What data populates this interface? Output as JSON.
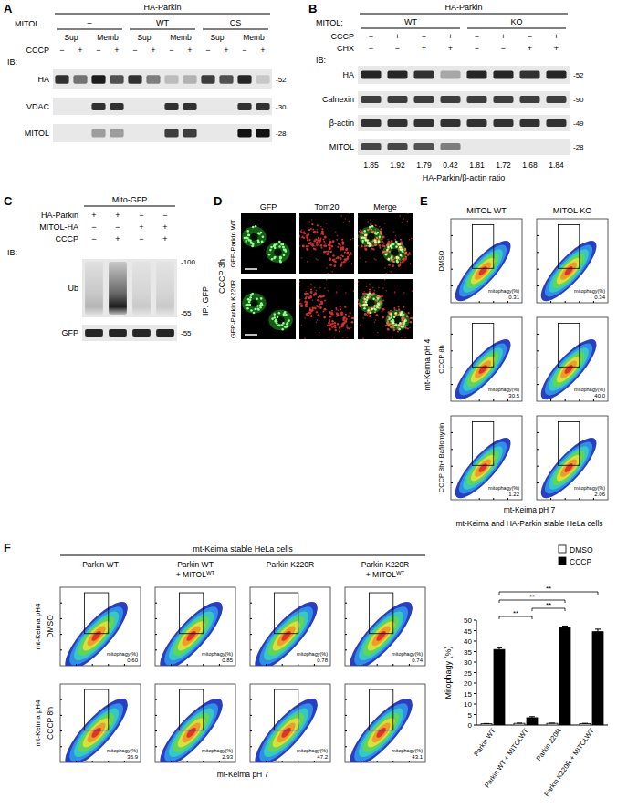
{
  "panels": {
    "A": {
      "letter": "A",
      "title": "HA-Parkin",
      "condition_label": "MITOL",
      "groups": [
        "–",
        "WT",
        "CS"
      ],
      "fractions": [
        "Sup",
        "Memb"
      ],
      "treatment_label": "CCCP",
      "treatment": [
        "−",
        "+"
      ],
      "ib": "IB:",
      "blots": [
        {
          "label": "HA",
          "mw": "-52",
          "signal": [
            0.85,
            0.55,
            0.95,
            0.7,
            0.85,
            0.5,
            0.2,
            0.25,
            0.8,
            0.7,
            0.9,
            0.15
          ]
        },
        {
          "label": "VDAC",
          "mw": "-30",
          "signal": [
            0,
            0,
            0.85,
            0.85,
            0,
            0,
            0.85,
            0.85,
            0,
            0,
            0.85,
            0.85
          ]
        },
        {
          "label": "MITOL",
          "mw": "-28",
          "signal": [
            0,
            0,
            0.35,
            0.35,
            0,
            0,
            0.8,
            0.8,
            0,
            0,
            1,
            1
          ]
        }
      ]
    },
    "B": {
      "letter": "B",
      "title": "HA-Parkin",
      "condition_label": "MITOL;",
      "groups": [
        "WT",
        "KO"
      ],
      "rows": [
        {
          "label": "CCCP",
          "values": [
            "−",
            "+",
            "−",
            "+",
            "−",
            "+",
            "−",
            "+"
          ]
        },
        {
          "label": "CHX",
          "values": [
            "−",
            "−",
            "+",
            "+",
            "−",
            "−",
            "+",
            "+"
          ]
        }
      ],
      "ib": "IB:",
      "blots": [
        {
          "label": "HA",
          "mw": "-52",
          "signal": [
            0.9,
            0.9,
            0.85,
            0.3,
            0.9,
            0.9,
            0.85,
            0.9
          ]
        },
        {
          "label": "Calnexin",
          "mw": "-90",
          "signal": [
            0.8,
            0.8,
            0.8,
            0.8,
            0.8,
            0.8,
            0.8,
            0.8
          ]
        },
        {
          "label": "β-actin",
          "mw": "-49",
          "signal": [
            0.85,
            0.85,
            0.85,
            0.85,
            0.85,
            0.85,
            0.85,
            0.85
          ]
        },
        {
          "label": "MITOL",
          "mw": "-28",
          "signal": [
            0.75,
            0.75,
            0.7,
            0.5,
            0,
            0,
            0,
            0
          ]
        }
      ],
      "ratio_label": "HA-Parkin/β-actin ratio",
      "ratios": [
        1.85,
        1.92,
        1.79,
        0.42,
        1.81,
        1.72,
        1.68,
        1.84
      ]
    },
    "C": {
      "letter": "C",
      "title": "Mito-GFP",
      "rows": [
        {
          "label": "HA-Parkin",
          "values": [
            "+",
            "+",
            "−",
            "−"
          ]
        },
        {
          "label": "MITOL-HA",
          "values": [
            "−",
            "−",
            "+",
            "+"
          ]
        },
        {
          "label": "CCCP",
          "values": [
            "−",
            "+",
            "−",
            "+"
          ]
        }
      ],
      "ib": "IB:",
      "ip": "IP: GFP",
      "blots": [
        {
          "label": "Ub",
          "mw": [
            "-100",
            "-55"
          ],
          "signal": [
            0.25,
            1,
            0.15,
            0.15
          ]
        },
        {
          "label": "GFP",
          "mw": [
            "-55"
          ],
          "signal": [
            0.9,
            0.9,
            0.9,
            0.9
          ]
        }
      ]
    },
    "D": {
      "letter": "D",
      "condition": "CCCP 3h",
      "columns": [
        "GFP",
        "Tom20",
        "Merge"
      ],
      "rows": [
        "GFP-Parkin WT",
        "GFP-Parkin K220R"
      ]
    },
    "E": {
      "letter": "E",
      "columns": [
        "MITOL WT",
        "MITOL KO"
      ],
      "rows": [
        "DMSO",
        "CCCP 8h",
        "CCCP 8h+ Bafilomycin"
      ],
      "gate_label": "mitophagy(%)",
      "values": [
        [
          "0.31",
          "0.34"
        ],
        [
          "30.5",
          "40.0"
        ],
        [
          "1.22",
          "2.06"
        ]
      ],
      "y_label": "mt-Keima pH 4",
      "x_label": "mt-Keima pH 7",
      "caption": "mt-Keima and HA-Parkin stable HeLa cells"
    },
    "F": {
      "letter": "F",
      "title": "mt-Keima stable HeLa cells",
      "columns": [
        {
          "lines": [
            "Parkin WT"
          ]
        },
        {
          "lines": [
            "Parkin WT",
            "+ MITOL"
          ],
          "sup": "WT"
        },
        {
          "lines": [
            "Parkin K220R"
          ]
        },
        {
          "lines": [
            "Parkin K220R",
            "+ MITOL"
          ],
          "sup": "WT"
        }
      ],
      "rows": [
        "DMSO",
        "CCCP 8h"
      ],
      "gate_label": "mitophagy(%)",
      "values": [
        [
          "0.60",
          "0.85",
          "0.78",
          "0.74"
        ],
        [
          "36.9",
          "2.93",
          "47.2",
          "43.1"
        ]
      ],
      "y_label": "mt-Keima pH4",
      "x_label": "mt-Keima pH 7"
    }
  },
  "chart_data": {
    "type": "bar",
    "categories": [
      "Parkin WT",
      "Parkin WT + MITOLWT",
      "Parkin 220R",
      "Parkin K220R + MITOLWT"
    ],
    "series": [
      {
        "name": "DMSO",
        "color": "#ffffff",
        "values": [
          0.6,
          0.8,
          0.8,
          0.7
        ],
        "errors": [
          0.1,
          0.1,
          0.1,
          0.1
        ]
      },
      {
        "name": "CCCP",
        "color": "#000000",
        "values": [
          36,
          3.5,
          46.5,
          44.5
        ],
        "errors": [
          0.8,
          0.5,
          0.7,
          1.2
        ]
      }
    ],
    "ylim": [
      0,
      50
    ],
    "yticks": [
      0,
      5,
      10,
      15,
      20,
      25,
      30,
      35,
      40,
      45,
      50
    ],
    "y_label": "Mitophagy (%)",
    "legend": "top-right",
    "comparisons": [
      {
        "label": "**",
        "pair": [
          0,
          1
        ]
      },
      {
        "label": "**",
        "pair": [
          1,
          2
        ]
      },
      {
        "label": "**",
        "pair": [
          0,
          2
        ]
      },
      {
        "label": "**",
        "pair": [
          0,
          3
        ]
      }
    ]
  }
}
